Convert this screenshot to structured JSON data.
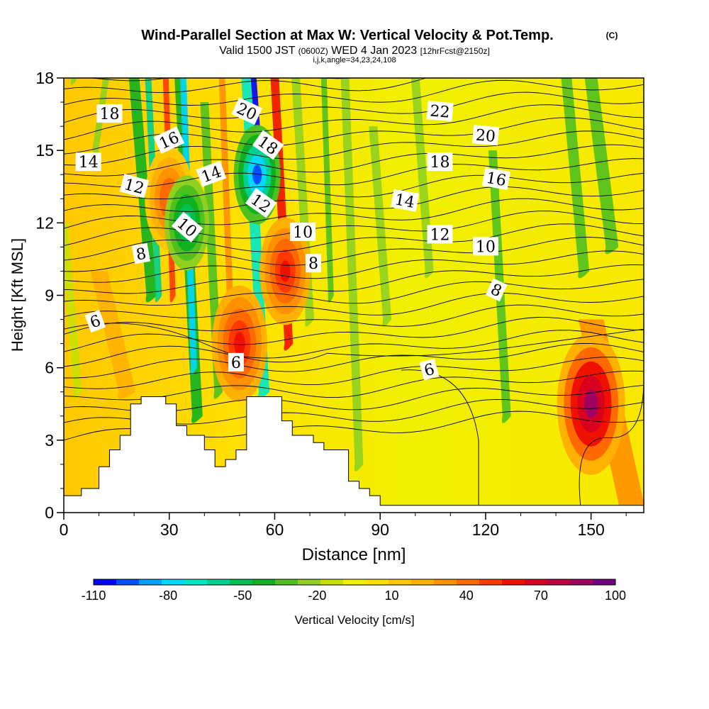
{
  "header": {
    "title_main": "Wind-Parallel Section at Max W: Vertical Velocity & Pot.Temp.",
    "copyright": "(C)",
    "valid_pre": "Valid 1500 JST",
    "valid_small": "(0600Z)",
    "valid_date": "WED 4 Jan 2023",
    "valid_fcst": "[12hrFcst@2150z]",
    "indices": "i,j,k,angle=34,23,24,108"
  },
  "chart_data": {
    "type": "heatmap",
    "xlabel": "Distance [nm]",
    "ylabel": "Height [Kft MSL]",
    "xlim": [
      0,
      165
    ],
    "ylim": [
      0,
      18
    ],
    "x_ticks": [
      0,
      30,
      60,
      90,
      120,
      150
    ],
    "y_ticks": [
      0,
      3,
      6,
      9,
      12,
      15,
      18
    ],
    "colorbar": {
      "label": "Vertical Velocity [cm/s]",
      "tick_labels": [
        "-110",
        "-80",
        "-50",
        "-20",
        "10",
        "40",
        "70",
        "100"
      ],
      "tick_values": [
        -110,
        -80,
        -50,
        -20,
        10,
        40,
        70,
        100
      ],
      "min": -110,
      "max": 100,
      "colors": [
        "#0000ff",
        "#0050ff",
        "#00a0ff",
        "#00d8ff",
        "#00e8c8",
        "#00d090",
        "#00c050",
        "#10b020",
        "#50c020",
        "#90d020",
        "#c8e000",
        "#f0f000",
        "#ffe000",
        "#ffc800",
        "#ffb000",
        "#ff9000",
        "#ff6a00",
        "#ff3a00",
        "#f01000",
        "#d80020",
        "#c00040",
        "#a00060",
        "#700080"
      ]
    },
    "terrain_profile": [
      [
        0,
        0.7
      ],
      [
        5,
        0.7
      ],
      [
        5,
        1.0
      ],
      [
        10,
        1.0
      ],
      [
        10,
        1.9
      ],
      [
        13,
        1.9
      ],
      [
        13,
        2.6
      ],
      [
        16,
        2.6
      ],
      [
        16,
        3.2
      ],
      [
        19,
        3.2
      ],
      [
        19,
        4.5
      ],
      [
        22,
        4.5
      ],
      [
        22,
        4.8
      ],
      [
        29,
        4.8
      ],
      [
        29,
        4.5
      ],
      [
        32,
        4.5
      ],
      [
        32,
        3.6
      ],
      [
        35,
        3.6
      ],
      [
        35,
        3.2
      ],
      [
        40,
        3.2
      ],
      [
        40,
        2.6
      ],
      [
        43,
        2.6
      ],
      [
        43,
        1.9
      ],
      [
        46,
        1.9
      ],
      [
        46,
        2.2
      ],
      [
        49,
        2.2
      ],
      [
        49,
        2.6
      ],
      [
        52,
        2.6
      ],
      [
        52,
        4.8
      ],
      [
        62,
        4.8
      ],
      [
        62,
        3.8
      ],
      [
        65,
        3.8
      ],
      [
        65,
        3.2
      ],
      [
        71,
        3.2
      ],
      [
        71,
        2.9
      ],
      [
        74,
        2.9
      ],
      [
        74,
        2.6
      ],
      [
        81,
        2.6
      ],
      [
        81,
        1.3
      ],
      [
        84,
        1.3
      ],
      [
        84,
        1.0
      ],
      [
        87,
        1.0
      ],
      [
        87,
        0.7
      ],
      [
        90,
        0.7
      ],
      [
        90,
        0.3
      ],
      [
        165,
        0.3
      ]
    ],
    "updraft_features": [
      {
        "x": 30,
        "y": 13,
        "w": 0.55,
        "value": 45
      },
      {
        "x": 50,
        "y": 7,
        "w": 0.7,
        "value": 55
      },
      {
        "x": 63,
        "y": 10,
        "w": 0.6,
        "value": 60
      },
      {
        "x": 150,
        "y": 4.5,
        "w": 1.0,
        "value": 85
      }
    ],
    "downdraft_features": [
      {
        "x": 55,
        "y": 14,
        "w": 0.5,
        "value": -100
      },
      {
        "x": 35,
        "y": 12,
        "w": 0.45,
        "value": -65
      }
    ],
    "contour_labels": [
      {
        "text": "18",
        "x": 13,
        "y": 16.5,
        "angle": 0
      },
      {
        "text": "14",
        "x": 7,
        "y": 14.5,
        "angle": 0
      },
      {
        "text": "16",
        "x": 30,
        "y": 15.4,
        "angle": -25
      },
      {
        "text": "12",
        "x": 20,
        "y": 13.5,
        "angle": 15
      },
      {
        "text": "14",
        "x": 42,
        "y": 14.0,
        "angle": -20
      },
      {
        "text": "10",
        "x": 35,
        "y": 11.8,
        "angle": 40
      },
      {
        "text": "8",
        "x": 22,
        "y": 10.7,
        "angle": -10
      },
      {
        "text": "20",
        "x": 52,
        "y": 16.6,
        "angle": 25
      },
      {
        "text": "18",
        "x": 58,
        "y": 15.2,
        "angle": 35
      },
      {
        "text": "12",
        "x": 56,
        "y": 12.8,
        "angle": 35
      },
      {
        "text": "10",
        "x": 68,
        "y": 11.6,
        "angle": 0
      },
      {
        "text": "8",
        "x": 71,
        "y": 10.3,
        "angle": 0
      },
      {
        "text": "6",
        "x": 9,
        "y": 7.9,
        "angle": -20
      },
      {
        "text": "6",
        "x": 49,
        "y": 6.2,
        "angle": 0
      },
      {
        "text": "22",
        "x": 107,
        "y": 16.6,
        "angle": 5
      },
      {
        "text": "20",
        "x": 120,
        "y": 15.6,
        "angle": 5
      },
      {
        "text": "18",
        "x": 107,
        "y": 14.5,
        "angle": 0
      },
      {
        "text": "16",
        "x": 123,
        "y": 13.8,
        "angle": 10
      },
      {
        "text": "14",
        "x": 97,
        "y": 12.9,
        "angle": 10
      },
      {
        "text": "12",
        "x": 107,
        "y": 11.5,
        "angle": 0
      },
      {
        "text": "10",
        "x": 120,
        "y": 11.0,
        "angle": 0
      },
      {
        "text": "8",
        "x": 123,
        "y": 9.2,
        "angle": 25
      },
      {
        "text": "6",
        "x": 104,
        "y": 5.9,
        "angle": -15
      }
    ]
  }
}
